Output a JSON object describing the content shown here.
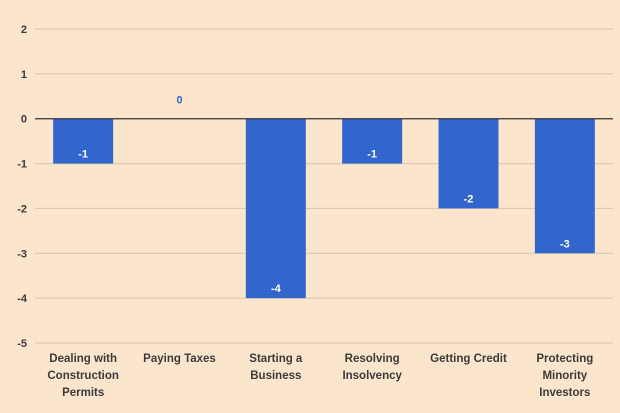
{
  "chart_data": {
    "type": "bar",
    "title": "",
    "xlabel": "",
    "ylabel": "",
    "ylim": [
      -5,
      2
    ],
    "yticks": [
      2,
      1,
      0,
      -1,
      -2,
      -3,
      -4,
      -5
    ],
    "grid": true,
    "categories": [
      [
        "Dealing with",
        "Construction",
        "Permits"
      ],
      [
        "Paying Taxes"
      ],
      [
        "Starting a",
        "Business"
      ],
      [
        "Resolving",
        "Insolvency"
      ],
      [
        "Getting Credit"
      ],
      [
        "Protecting",
        "Minority",
        "Investors"
      ]
    ],
    "values": [
      -1,
      0,
      -4,
      -1,
      -2,
      -3
    ],
    "data_labels": [
      "-1",
      "0",
      "-4",
      "-1",
      "-2",
      "-3"
    ],
    "colors": {
      "bar": "#3366cc",
      "background": "#fbe5cd",
      "grid": "#d9c4ad",
      "zero_line": "#333333",
      "label_inside": "#ffffff",
      "label_outside": "#3366cc"
    }
  }
}
